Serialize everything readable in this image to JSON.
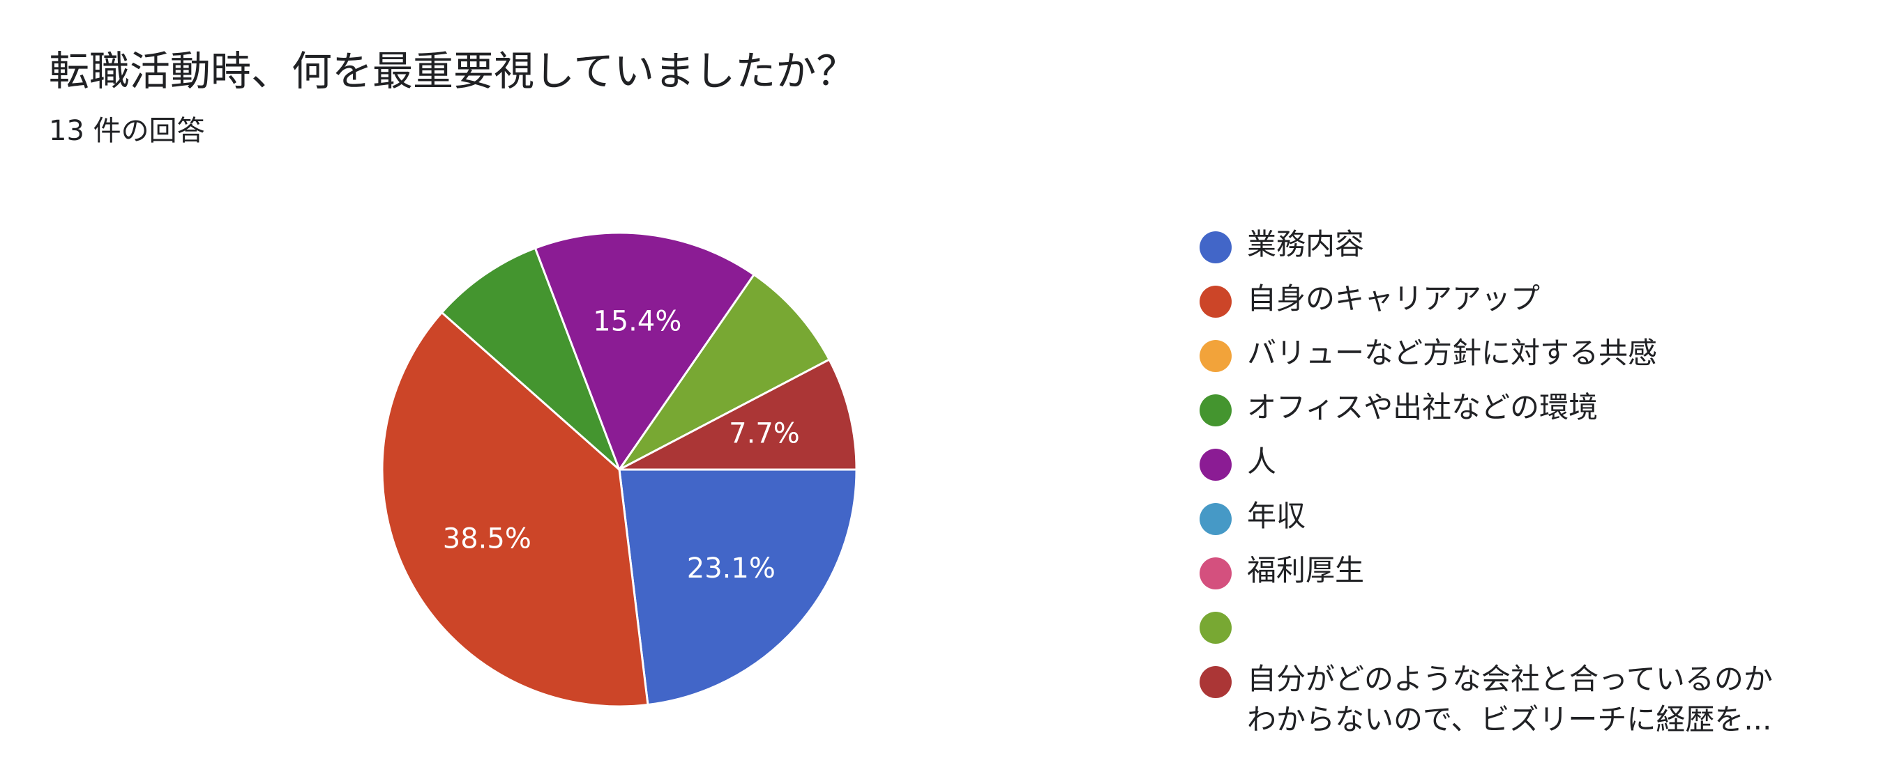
{
  "header": {
    "title": "転職活動時、何を最重要視していましたか？",
    "subtitle": "13 件の回答"
  },
  "chart_data": {
    "type": "pie",
    "total_responses": 13,
    "slices": [
      {
        "label": "業務内容",
        "count": 3,
        "percent": 23.1,
        "value_label": "23.1%",
        "color": "#4266c8"
      },
      {
        "label": "自身のキャリアアップ",
        "count": 5,
        "percent": 38.5,
        "value_label": "38.5%",
        "color": "#cc4528"
      },
      {
        "label": "バリューなど方針に対する共感",
        "count": 0,
        "percent": 0,
        "value_label": "",
        "color": "#f2a33a"
      },
      {
        "label": "オフィスや出社などの環境",
        "count": 1,
        "percent": 7.7,
        "value_label": "",
        "color": "#44952f"
      },
      {
        "label": "人",
        "count": 2,
        "percent": 15.4,
        "value_label": "15.4%",
        "color": "#8b1c94"
      },
      {
        "label": "年収",
        "count": 0,
        "percent": 0,
        "value_label": "",
        "color": "#4699c6"
      },
      {
        "label": "福利厚生",
        "count": 0,
        "percent": 0,
        "value_label": "",
        "color": "#d4507e"
      },
      {
        "label": "",
        "count": 1,
        "percent": 7.7,
        "value_label": "",
        "color": "#78a833"
      },
      {
        "label": "自分がどのような会社と合っているのか\nわからないので、ビズリーチに経歴を...",
        "count": 1,
        "percent": 7.7,
        "value_label": "7.7%",
        "color": "#ab3636"
      }
    ],
    "legend_position": "right"
  }
}
